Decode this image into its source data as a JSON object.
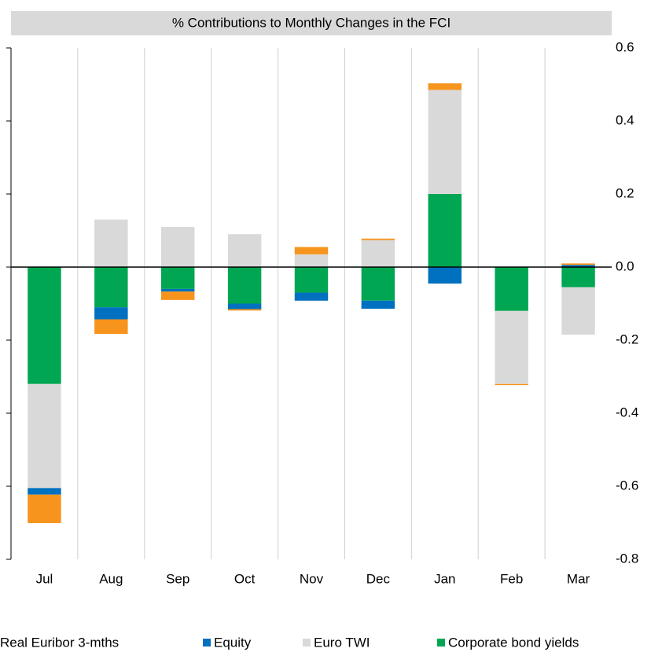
{
  "chart_data": {
    "type": "stacked_bar",
    "title": "% Contributions to Monthly Changes in the FCI",
    "categories": [
      "Jul",
      "Aug",
      "Sep",
      "Oct",
      "Nov",
      "Dec",
      "Jan",
      "Feb",
      "Mar"
    ],
    "series": [
      {
        "name": "Real Euribor 3-mths",
        "color": "#f7941d",
        "values": [
          -0.078,
          -0.04,
          -0.023,
          -0.004,
          0.02,
          0.004,
          0.018,
          -0.003,
          0.004
        ]
      },
      {
        "name": "Equity",
        "color": "#0070c0",
        "values": [
          -0.018,
          -0.033,
          -0.007,
          -0.015,
          -0.022,
          -0.022,
          -0.045,
          0,
          0.006
        ]
      },
      {
        "name": "Euro TWI",
        "color": "#d9d9d9",
        "values": [
          -0.285,
          0.13,
          0.11,
          0.09,
          0.035,
          0.074,
          0.285,
          -0.2,
          -0.13
        ]
      },
      {
        "name": "Corporate bond yields",
        "color": "#00a651",
        "values": [
          -0.32,
          -0.11,
          -0.06,
          -0.1,
          -0.07,
          -0.092,
          0.2,
          -0.12,
          -0.055
        ]
      }
    ],
    "ylim": [
      -0.8,
      0.6
    ],
    "yticks": [
      0.6,
      0.4,
      0.2,
      {
        "value": 0,
        "label": "0.0"
      },
      -0.2,
      -0.4,
      -0.6,
      -0.8
    ],
    "grid": true
  }
}
